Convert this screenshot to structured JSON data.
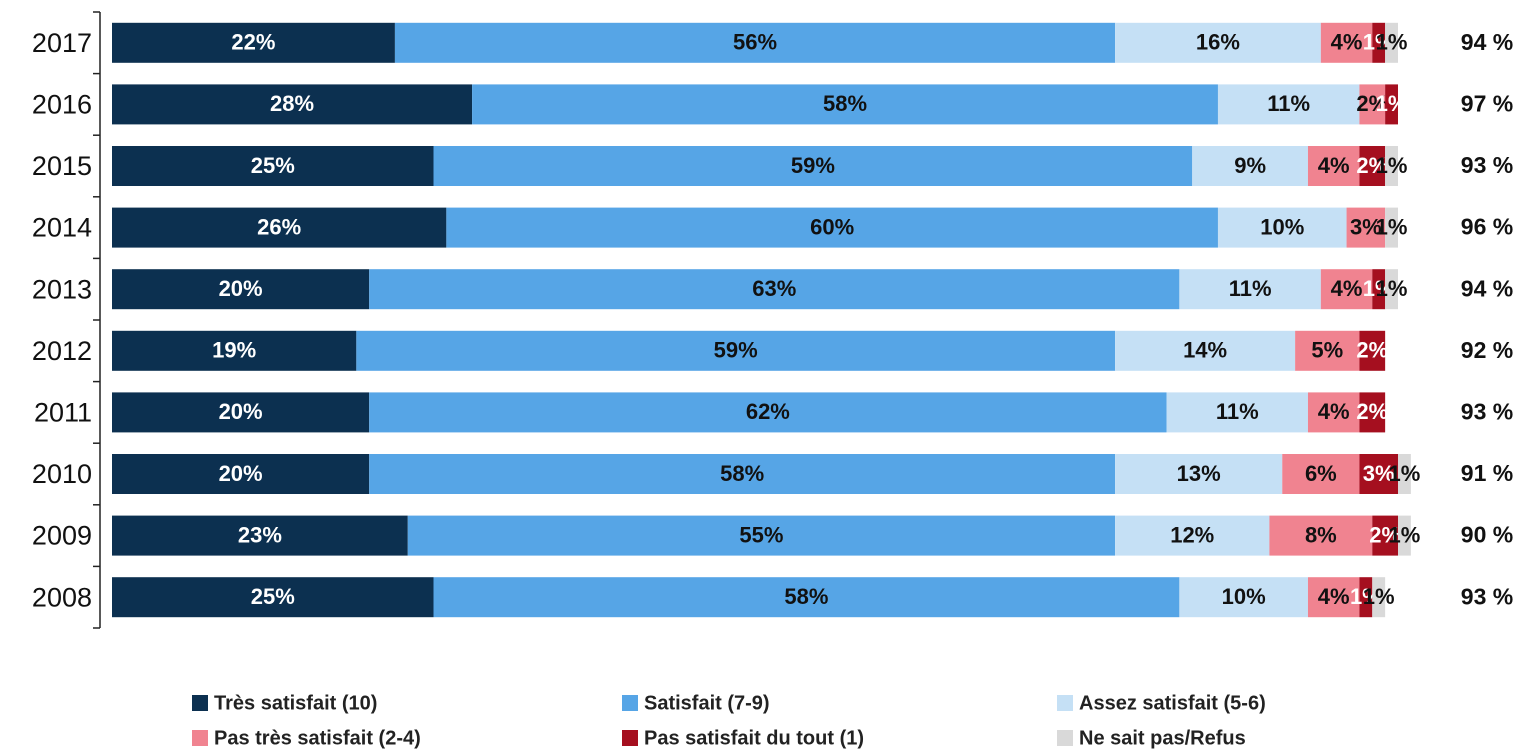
{
  "chart_data": {
    "type": "stacked-bar-horizontal",
    "categories": [
      "2017",
      "2016",
      "2015",
      "2014",
      "2013",
      "2012",
      "2011",
      "2010",
      "2009",
      "2008"
    ],
    "xlim": [
      0,
      100
    ],
    "legend": "bottom",
    "series": [
      {
        "name": "Très satisfait (10)",
        "color": "#0c3050",
        "label_color": "#ffffff",
        "values": [
          22,
          28,
          25,
          26,
          20,
          19,
          20,
          20,
          23,
          25
        ],
        "value_labels": [
          "22%",
          "28%",
          "25%",
          "26%",
          "20%",
          "19%",
          "20%",
          "20%",
          "23%",
          "25%"
        ]
      },
      {
        "name": "Satisfait (7-9)",
        "color": "#56a5e6",
        "label_color": "#111111",
        "values": [
          56,
          58,
          59,
          60,
          63,
          59,
          62,
          58,
          55,
          58
        ],
        "value_labels": [
          "56%",
          "58%",
          "59%",
          "60%",
          "63%",
          "59%",
          "62%",
          "58%",
          "55%",
          "58%"
        ]
      },
      {
        "name": "Assez satisfait (5-6)",
        "color": "#c5e0f5",
        "label_color": "#111111",
        "values": [
          16,
          11,
          9,
          10,
          11,
          14,
          11,
          13,
          12,
          10
        ],
        "value_labels": [
          "16%",
          "11%",
          "9%",
          "10%",
          "11%",
          "14%",
          "11%",
          "13%",
          "12%",
          "10%"
        ]
      },
      {
        "name": "Pas très satisfait (2-4)",
        "color": "#f08390",
        "label_color": "#111111",
        "values": [
          4,
          2,
          4,
          3,
          4,
          5,
          4,
          6,
          8,
          4
        ],
        "value_labels": [
          "4%",
          "2%",
          "4%",
          "3%",
          "4%",
          "5%",
          "4%",
          "6%",
          "8%",
          "4%"
        ]
      },
      {
        "name": "Pas satisfait du tout (1)",
        "color": "#a50f1f",
        "label_color": "#ffffff",
        "values": [
          1,
          1,
          2,
          null,
          1,
          2,
          2,
          3,
          2,
          1
        ],
        "value_labels": [
          "1%",
          "1%",
          "2%",
          null,
          "1%",
          "2%",
          "2%",
          "3%",
          "2%",
          "1%"
        ]
      },
      {
        "name": "Ne sait pas/Refus",
        "color": "#d9d9d9",
        "label_color": "#111111",
        "values": [
          1,
          null,
          1,
          1,
          1,
          null,
          null,
          1,
          1,
          1
        ],
        "value_labels": [
          "1%",
          null,
          "1%",
          "1%",
          "1%",
          null,
          null,
          "1%",
          "1%",
          "1%"
        ]
      }
    ],
    "totals": {
      "values": [
        94,
        97,
        93,
        96,
        94,
        92,
        93,
        91,
        90,
        93
      ],
      "value_labels": [
        "94 %",
        "97 %",
        "93 %",
        "96 %",
        "94 %",
        "92 %",
        "93 %",
        "91 %",
        "90 %",
        "93 %"
      ]
    }
  }
}
